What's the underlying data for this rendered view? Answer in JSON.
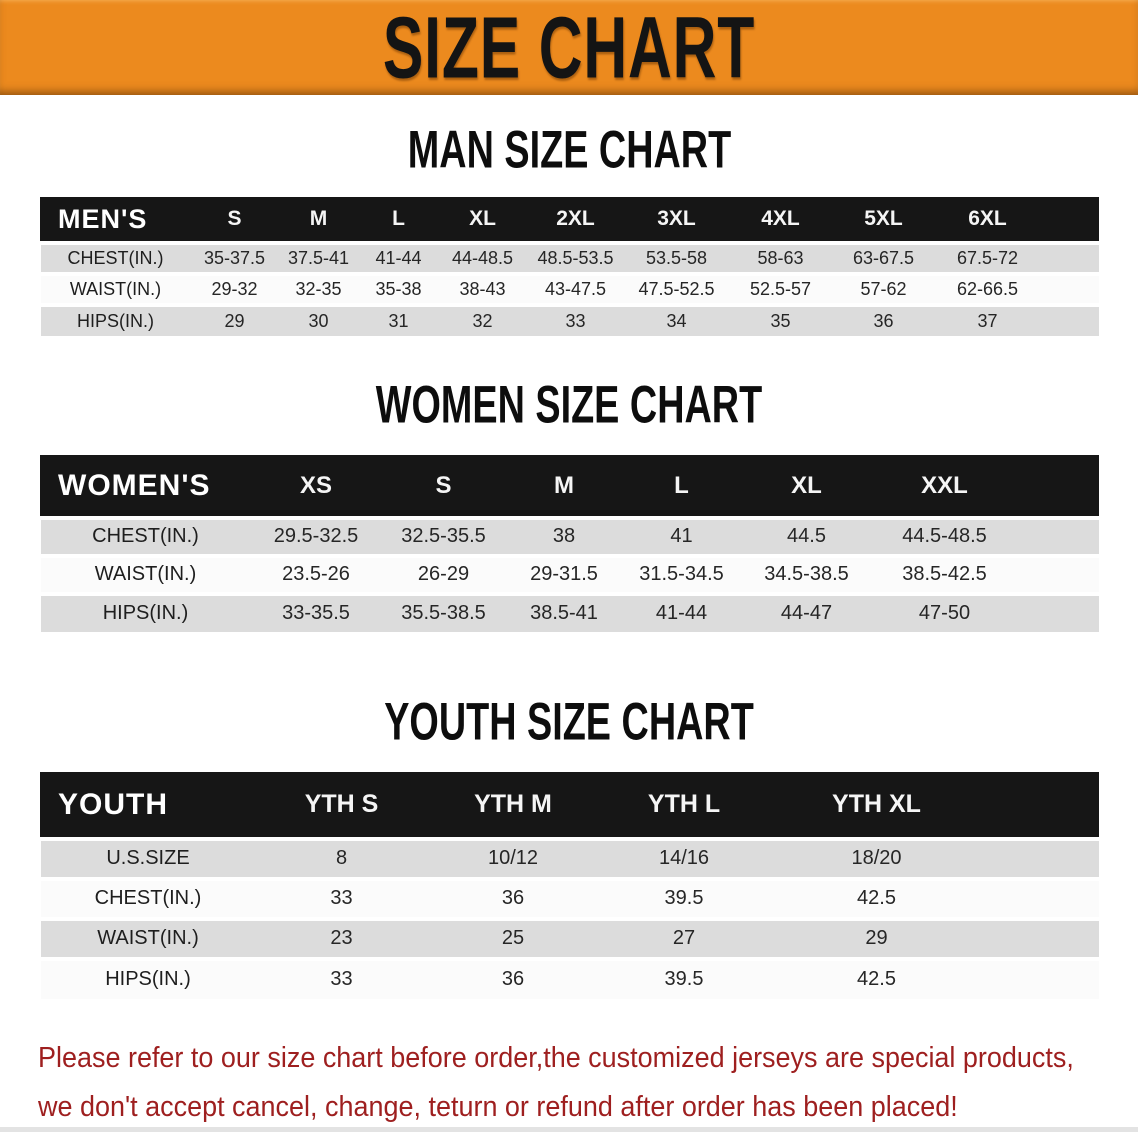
{
  "banner": {
    "title": "SIZE CHART"
  },
  "sections": [
    {
      "id": "men",
      "heading": "MAN SIZE CHART",
      "header_label": "MEN'S",
      "columns": [
        "S",
        "M",
        "L",
        "XL",
        "2XL",
        "3XL",
        "4XL",
        "5XL",
        "6XL"
      ],
      "rows": [
        {
          "label": "CHEST(IN.)",
          "values": [
            "35-37.5",
            "37.5-41",
            "41-44",
            "44-48.5",
            "48.5-53.5",
            "53.5-58",
            "58-63",
            "63-67.5",
            "67.5-72"
          ]
        },
        {
          "label": "WAIST(IN.)",
          "values": [
            "29-32",
            "32-35",
            "35-38",
            "38-43",
            "43-47.5",
            "47.5-52.5",
            "52.5-57",
            "57-62",
            "62-66.5"
          ]
        },
        {
          "label": "HIPS(IN.)",
          "values": [
            "29",
            "30",
            "31",
            "32",
            "33",
            "34",
            "35",
            "36",
            "37"
          ]
        }
      ]
    },
    {
      "id": "women",
      "heading": "WOMEN SIZE CHART",
      "header_label": "WOMEN'S",
      "columns": [
        "XS",
        "S",
        "M",
        "L",
        "XL",
        "XXL"
      ],
      "rows": [
        {
          "label": "CHEST(IN.)",
          "values": [
            "29.5-32.5",
            "32.5-35.5",
            "38",
            "41",
            "44.5",
            "44.5-48.5"
          ]
        },
        {
          "label": "WAIST(IN.)",
          "values": [
            "23.5-26",
            "26-29",
            "29-31.5",
            "31.5-34.5",
            "34.5-38.5",
            "38.5-42.5"
          ]
        },
        {
          "label": "HIPS(IN.)",
          "values": [
            "33-35.5",
            "35.5-38.5",
            "38.5-41",
            "41-44",
            "44-47",
            "47-50"
          ]
        }
      ]
    },
    {
      "id": "youth",
      "heading": "YOUTH SIZE CHART",
      "header_label": "YOUTH",
      "columns": [
        "YTH S",
        "YTH M",
        "YTH L",
        "YTH XL"
      ],
      "rows": [
        {
          "label": "U.S.SIZE",
          "values": [
            "8",
            "10/12",
            "14/16",
            "18/20"
          ]
        },
        {
          "label": "CHEST(IN.)",
          "values": [
            "33",
            "36",
            "39.5",
            "42.5"
          ]
        },
        {
          "label": "WAIST(IN.)",
          "values": [
            "23",
            "25",
            "27",
            "29"
          ]
        },
        {
          "label": "HIPS(IN.)",
          "values": [
            "33",
            "36",
            "39.5",
            "42.5"
          ]
        }
      ]
    }
  ],
  "footer": {
    "line1": "Please refer to our size chart before order,the customized jerseys are special products,",
    "line2": "we don't accept cancel, change, teturn or refund after order has been placed!"
  },
  "colors": {
    "banner_bg": "#EC8A1E",
    "table_header_bg": "#161616",
    "row_gray": "#DCDCDC",
    "row_white": "#FBFBFB",
    "footer_text": "#9E1F1F"
  }
}
